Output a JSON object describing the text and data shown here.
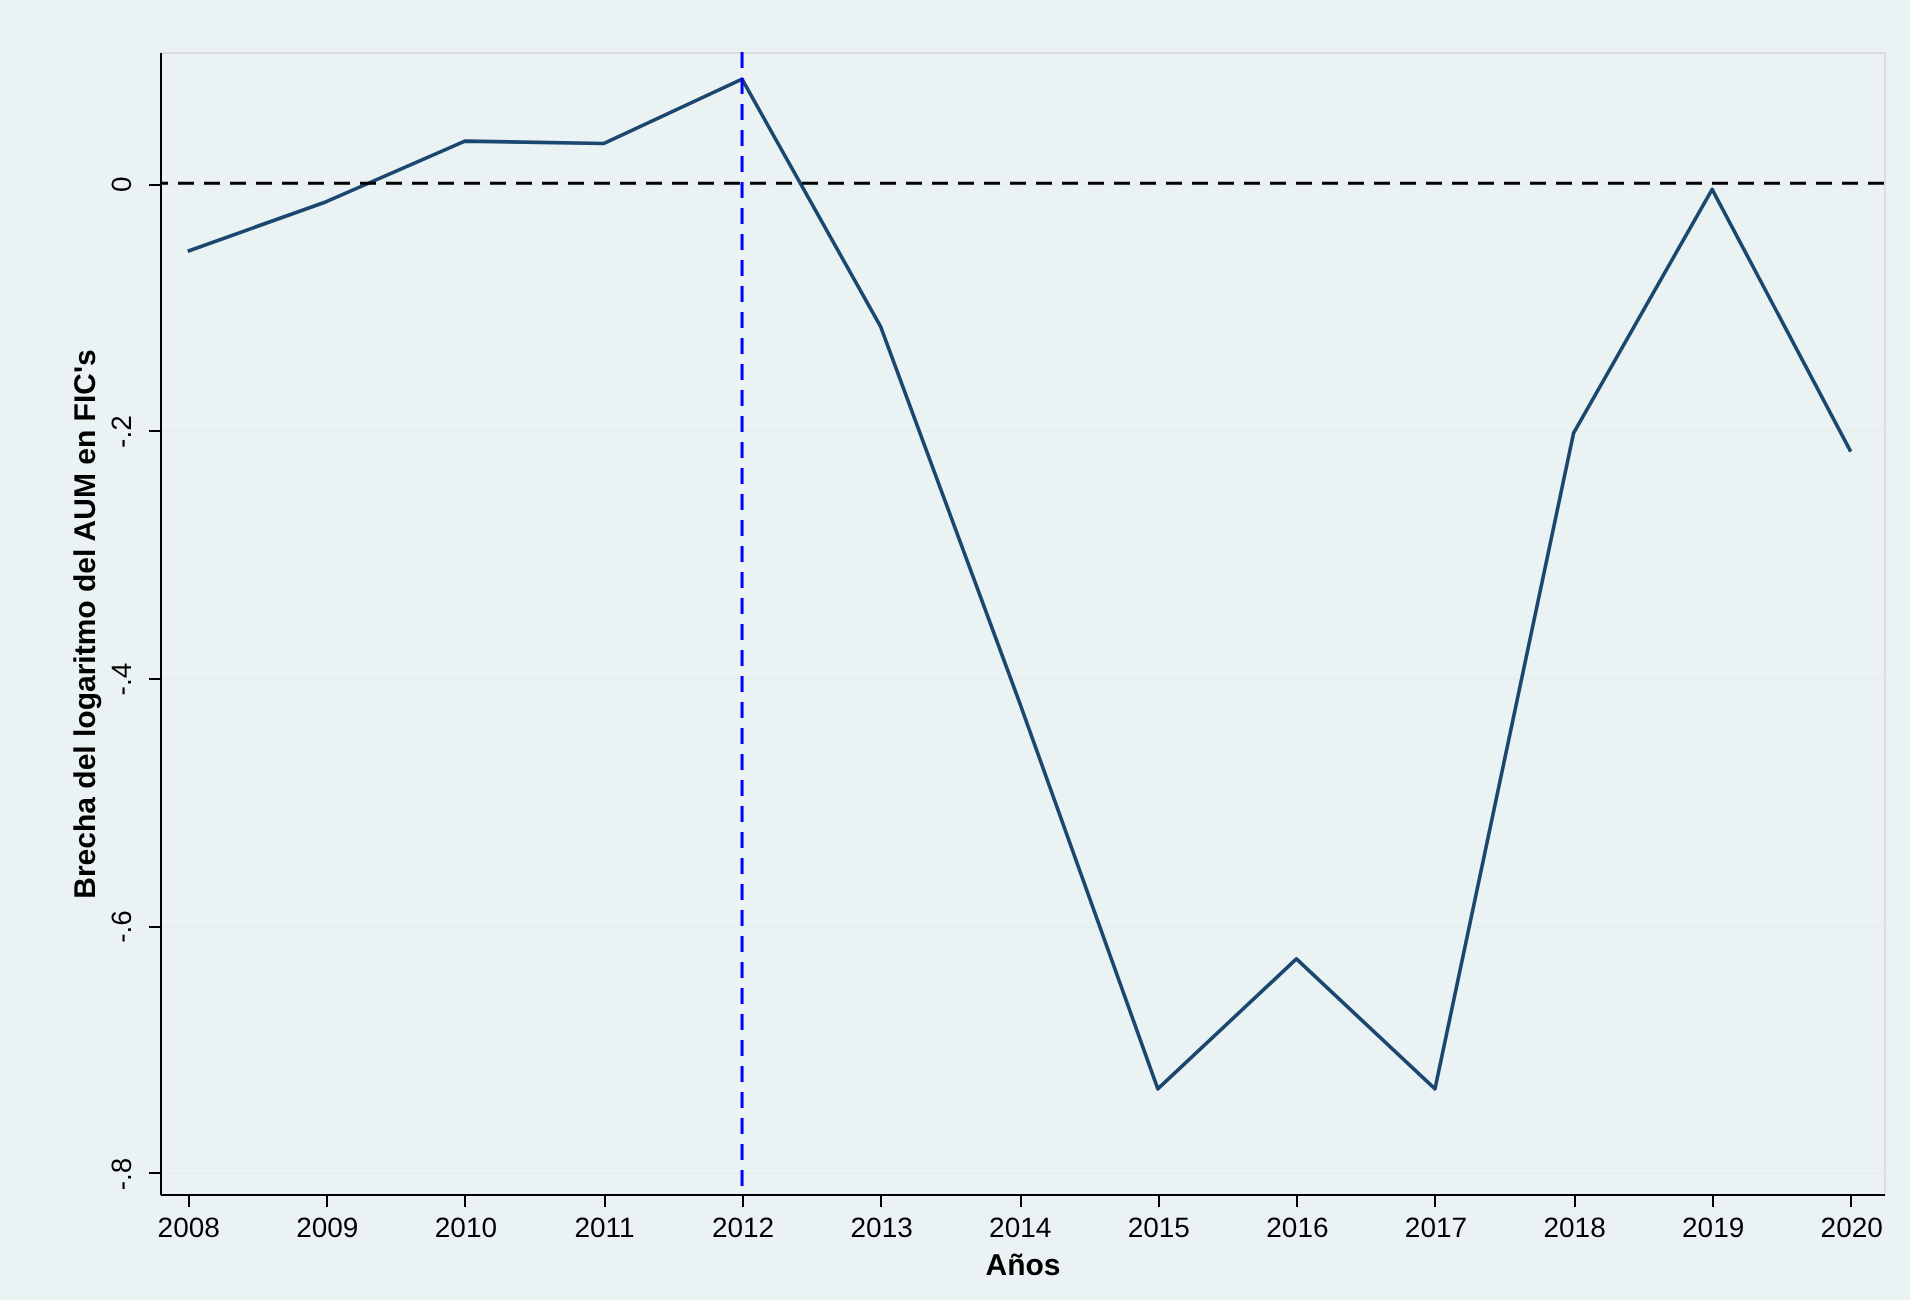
{
  "chart_data": {
    "type": "line",
    "xlabel": "Años",
    "ylabel": "Brecha del logaritmo del AUM en FIC's",
    "x": [
      2008,
      2009,
      2010,
      2011,
      2012,
      2013,
      2014,
      2015,
      2016,
      2017,
      2018,
      2019,
      2020
    ],
    "series": [
      {
        "color": "#1a476f",
        "values": [
          -0.055,
          -0.015,
          0.034,
          0.032,
          0.084,
          -0.116,
          -0.419,
          -0.732,
          -0.627,
          -0.732,
          -0.202,
          -0.005,
          -0.217
        ]
      }
    ],
    "xlim": [
      2007.8,
      2020.24
    ],
    "xticks": [
      2008,
      2009,
      2010,
      2011,
      2012,
      2013,
      2014,
      2015,
      2016,
      2017,
      2018,
      2019,
      2020
    ],
    "ylim": [
      -0.817,
      0.106
    ],
    "yticks": [
      {
        "value": -0.8,
        "label": "-.8"
      },
      {
        "value": -0.6,
        "label": "-.6"
      },
      {
        "value": -0.4,
        "label": "-.4"
      },
      {
        "value": -0.2,
        "label": "-.2"
      },
      {
        "value": 0,
        "label": "0"
      }
    ],
    "ref_lines": [
      {
        "axis": "y",
        "value": 0,
        "color": "#000000",
        "line_style": "dashed"
      },
      {
        "axis": "x",
        "value": 2012,
        "color": "#0000ff",
        "line_style": "dashed"
      }
    ],
    "grid": "y",
    "marker": "none",
    "line_style": "solid"
  }
}
